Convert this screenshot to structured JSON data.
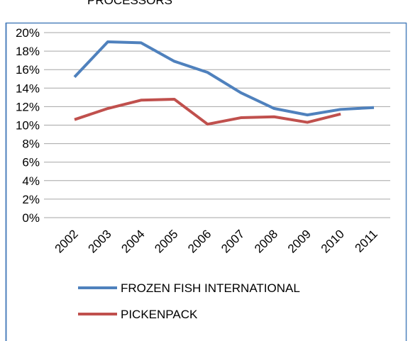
{
  "chart_data": {
    "type": "line",
    "title": "PROCESSORS",
    "categories": [
      "2002",
      "2003",
      "2004",
      "2005",
      "2006",
      "2007",
      "2008",
      "2009",
      "2010",
      "2011"
    ],
    "series": [
      {
        "name": "FROZEN FISH INTERNATIONAL",
        "color": "#4f81bd",
        "values": [
          15.2,
          19.0,
          18.9,
          16.9,
          15.7,
          13.5,
          11.8,
          11.1,
          11.7,
          11.9
        ]
      },
      {
        "name": "PICKENPACK",
        "color": "#c0504d",
        "values": [
          10.6,
          11.8,
          12.7,
          12.8,
          10.1,
          10.8,
          10.9,
          10.3,
          11.2,
          null
        ]
      }
    ],
    "ylim": [
      0,
      20
    ],
    "yticks": [
      {
        "value": 0,
        "label": "0%"
      },
      {
        "value": 2,
        "label": "2%"
      },
      {
        "value": 4,
        "label": "4%"
      },
      {
        "value": 6,
        "label": "6%"
      },
      {
        "value": 8,
        "label": "8%"
      },
      {
        "value": 10,
        "label": "10%"
      },
      {
        "value": 12,
        "label": "12%"
      },
      {
        "value": 14,
        "label": "14%"
      },
      {
        "value": 16,
        "label": "16%"
      },
      {
        "value": 18,
        "label": "18%"
      },
      {
        "value": 20,
        "label": "20%"
      }
    ],
    "grid": true
  }
}
